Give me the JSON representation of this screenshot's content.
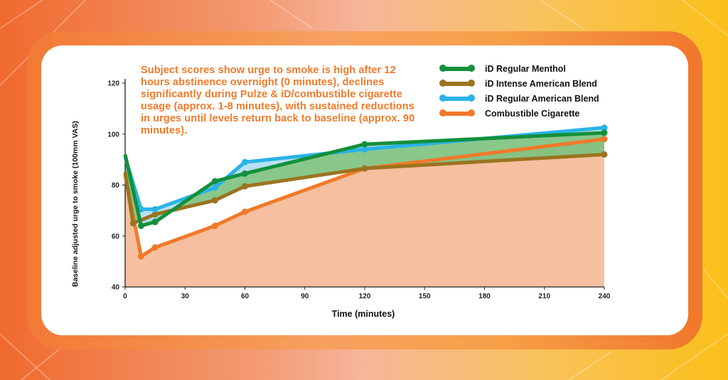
{
  "colors": {
    "menthol": "#12903a",
    "intense": "#9a7420",
    "american": "#29b3e6",
    "combustible": "#f07a2a",
    "fill_between": "#7cc17e",
    "fill_under": "#f4b48e"
  },
  "annotation": "Subject scores show urge to smoke is high after 12 hours abstinence overnight (0 minutes), declines significantly during Pulze & iD/combustible cigarette usage (approx. 1-8 minutes), with sustained reductions in urges until levels return back to baseline (approx. 90 minutes).",
  "chart_data": {
    "type": "line",
    "xlabel": "Time (minutes)",
    "ylabel": "Baseline adjusted urge to smoke (100mm VAS)",
    "xlim": [
      0,
      240
    ],
    "ylim": [
      40,
      120
    ],
    "xticks": [
      0,
      30,
      60,
      90,
      120,
      150,
      180,
      210,
      240
    ],
    "yticks": [
      40,
      60,
      80,
      100,
      120
    ],
    "legend_position": "top-right",
    "series": [
      {
        "name": "iD Regular Menthol",
        "color_key": "menthol",
        "x": [
          0,
          8,
          15,
          45,
          60,
          120,
          240
        ],
        "y": [
          92,
          64,
          65.5,
          81.5,
          84.5,
          96,
          100.5
        ]
      },
      {
        "name": "iD Intense American Blend",
        "color_key": "intense",
        "x": [
          0,
          4,
          15,
          45,
          60,
          120,
          240
        ],
        "y": [
          85,
          65,
          68.5,
          74,
          79.5,
          86.5,
          92
        ]
      },
      {
        "name": "iD Regular American Blend",
        "color_key": "american",
        "x": [
          0,
          8,
          15,
          45,
          60,
          120,
          240
        ],
        "y": [
          91,
          70.5,
          70.5,
          79,
          89,
          94,
          102.5
        ]
      },
      {
        "name": "Combustible Cigarette",
        "color_key": "combustible",
        "x": [
          0,
          8,
          15,
          45,
          60,
          120,
          240
        ],
        "y": [
          84,
          52,
          55.5,
          64,
          69.5,
          86.5,
          98
        ]
      }
    ]
  }
}
